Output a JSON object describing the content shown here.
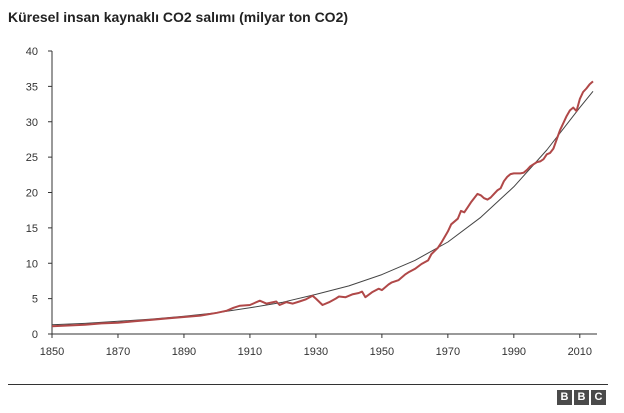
{
  "chart_data": {
    "type": "line",
    "title": "Küresel insan kaynaklı CO2 salımı (milyar ton CO2)",
    "xlabel": "",
    "ylabel": "",
    "xlim": [
      1850,
      2014
    ],
    "ylim": [
      0,
      40
    ],
    "x_ticks": [
      1850,
      1870,
      1890,
      1910,
      1930,
      1950,
      1970,
      1990,
      2010
    ],
    "y_ticks": [
      0,
      5,
      10,
      15,
      20,
      25,
      30,
      35,
      40
    ],
    "grid": false,
    "legend": "none",
    "series": [
      {
        "color": "#b04848",
        "points": [
          [
            1850,
            1.1
          ],
          [
            1855,
            1.2
          ],
          [
            1860,
            1.3
          ],
          [
            1865,
            1.5
          ],
          [
            1870,
            1.6
          ],
          [
            1875,
            1.8
          ],
          [
            1880,
            2.0
          ],
          [
            1885,
            2.2
          ],
          [
            1890,
            2.4
          ],
          [
            1895,
            2.6
          ],
          [
            1900,
            3.0
          ],
          [
            1903,
            3.3
          ],
          [
            1905,
            3.7
          ],
          [
            1907,
            4.0
          ],
          [
            1910,
            4.1
          ],
          [
            1913,
            4.7
          ],
          [
            1915,
            4.3
          ],
          [
            1918,
            4.6
          ],
          [
            1919,
            4.1
          ],
          [
            1921,
            4.5
          ],
          [
            1923,
            4.3
          ],
          [
            1925,
            4.6
          ],
          [
            1927,
            4.9
          ],
          [
            1929,
            5.4
          ],
          [
            1930,
            5.0
          ],
          [
            1932,
            4.1
          ],
          [
            1934,
            4.5
          ],
          [
            1936,
            5.0
          ],
          [
            1937,
            5.3
          ],
          [
            1939,
            5.2
          ],
          [
            1941,
            5.6
          ],
          [
            1943,
            5.8
          ],
          [
            1944,
            6.0
          ],
          [
            1945,
            5.2
          ],
          [
            1947,
            5.9
          ],
          [
            1949,
            6.4
          ],
          [
            1950,
            6.2
          ],
          [
            1952,
            7.0
          ],
          [
            1953,
            7.3
          ],
          [
            1955,
            7.6
          ],
          [
            1957,
            8.4
          ],
          [
            1958,
            8.7
          ],
          [
            1960,
            9.2
          ],
          [
            1962,
            9.9
          ],
          [
            1964,
            10.4
          ],
          [
            1965,
            11.3
          ],
          [
            1967,
            12.2
          ],
          [
            1968,
            12.9
          ],
          [
            1970,
            14.5
          ],
          [
            1971,
            15.5
          ],
          [
            1973,
            16.3
          ],
          [
            1974,
            17.4
          ],
          [
            1975,
            17.2
          ],
          [
            1976,
            17.9
          ],
          [
            1977,
            18.6
          ],
          [
            1979,
            19.8
          ],
          [
            1980,
            19.6
          ],
          [
            1981,
            19.2
          ],
          [
            1982,
            19.0
          ],
          [
            1983,
            19.3
          ],
          [
            1984,
            19.8
          ],
          [
            1985,
            20.3
          ],
          [
            1986,
            20.6
          ],
          [
            1987,
            21.6
          ],
          [
            1988,
            22.2
          ],
          [
            1989,
            22.6
          ],
          [
            1990,
            22.7
          ],
          [
            1992,
            22.7
          ],
          [
            1993,
            22.8
          ],
          [
            1994,
            23.2
          ],
          [
            1995,
            23.7
          ],
          [
            1997,
            24.3
          ],
          [
            1998,
            24.4
          ],
          [
            1999,
            24.7
          ],
          [
            2000,
            25.4
          ],
          [
            2001,
            25.6
          ],
          [
            2002,
            26.2
          ],
          [
            2003,
            27.5
          ],
          [
            2004,
            28.8
          ],
          [
            2005,
            29.8
          ],
          [
            2006,
            30.8
          ],
          [
            2007,
            31.6
          ],
          [
            2008,
            32.0
          ],
          [
            2009,
            31.5
          ],
          [
            2010,
            33.2
          ],
          [
            2011,
            34.2
          ],
          [
            2012,
            34.7
          ],
          [
            2013,
            35.3
          ],
          [
            2014,
            35.7
          ]
        ]
      },
      {
        "color": "#444444",
        "points": [
          [
            1850,
            1.3
          ],
          [
            1860,
            1.5
          ],
          [
            1870,
            1.8
          ],
          [
            1880,
            2.1
          ],
          [
            1890,
            2.5
          ],
          [
            1900,
            3.0
          ],
          [
            1910,
            3.7
          ],
          [
            1920,
            4.5
          ],
          [
            1930,
            5.6
          ],
          [
            1940,
            6.8
          ],
          [
            1950,
            8.4
          ],
          [
            1960,
            10.4
          ],
          [
            1970,
            13.0
          ],
          [
            1980,
            16.5
          ],
          [
            1990,
            20.8
          ],
          [
            2000,
            26.0
          ],
          [
            2005,
            29.0
          ],
          [
            2010,
            32.0
          ],
          [
            2014,
            34.3
          ]
        ]
      }
    ]
  },
  "logo": {
    "letters": [
      "B",
      "B",
      "C"
    ]
  }
}
